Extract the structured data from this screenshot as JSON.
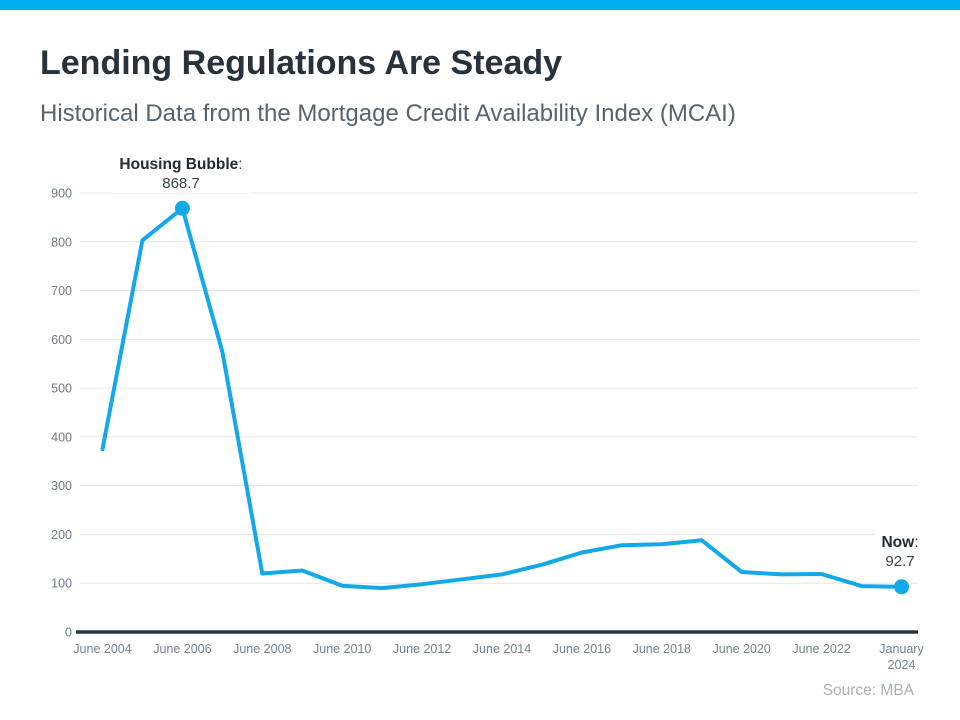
{
  "page": {
    "title": "Lending Regulations Are Steady",
    "subtitle": "Historical Data from the Mortgage Credit Availability Index (MCAI)",
    "source": "Source: MBA",
    "accent_bar_color": "#00AEEF"
  },
  "chart_data": {
    "type": "line",
    "title": "Lending Regulations Are Steady",
    "subtitle": "Historical Data from the Mortgage Credit Availability Index (MCAI)",
    "xlabel": "",
    "ylabel": "",
    "ylim": [
      0,
      900
    ],
    "ytick_step": 100,
    "grid": true,
    "legend": "none",
    "line_color": "#12A8EA",
    "grid_color": "#E4E6E9",
    "axis_color": "#2B353D",
    "ytick_color": "#6C7884",
    "xtick_color": "#76828C",
    "categories": [
      "June 2004",
      "June 2005",
      "June 2006",
      "June 2007",
      "June 2008",
      "June 2009",
      "June 2010",
      "June 2011",
      "June 2012",
      "June 2013",
      "June 2014",
      "June 2015",
      "June 2016",
      "June 2017",
      "June 2018",
      "June 2019",
      "June 2020",
      "June 2021",
      "June 2022",
      "June 2023",
      "January 2024"
    ],
    "values": [
      375,
      803,
      868.7,
      575,
      120,
      126,
      95,
      90,
      98,
      108,
      118,
      138,
      163,
      178,
      180,
      188,
      123,
      118,
      119,
      94,
      92.7
    ],
    "x_ticks": [
      {
        "index": 0,
        "lines": [
          "June 2004"
        ]
      },
      {
        "index": 2,
        "lines": [
          "June 2006"
        ]
      },
      {
        "index": 4,
        "lines": [
          "June 2008"
        ]
      },
      {
        "index": 6,
        "lines": [
          "June 2010"
        ]
      },
      {
        "index": 8,
        "lines": [
          "June 2012"
        ]
      },
      {
        "index": 10,
        "lines": [
          "June 2014"
        ]
      },
      {
        "index": 12,
        "lines": [
          "June 2016"
        ]
      },
      {
        "index": 14,
        "lines": [
          "June 2018"
        ]
      },
      {
        "index": 16,
        "lines": [
          "June 2020"
        ]
      },
      {
        "index": 18,
        "lines": [
          "June 2022"
        ]
      },
      {
        "index": 20,
        "lines": [
          "January",
          "2024"
        ]
      }
    ],
    "annotations": [
      {
        "label": "Housing Bubble",
        "separator": ":",
        "value": "868.7",
        "point_index": 2
      },
      {
        "label": "Now",
        "separator": ":",
        "value": "92.7",
        "point_index": 20
      }
    ]
  }
}
